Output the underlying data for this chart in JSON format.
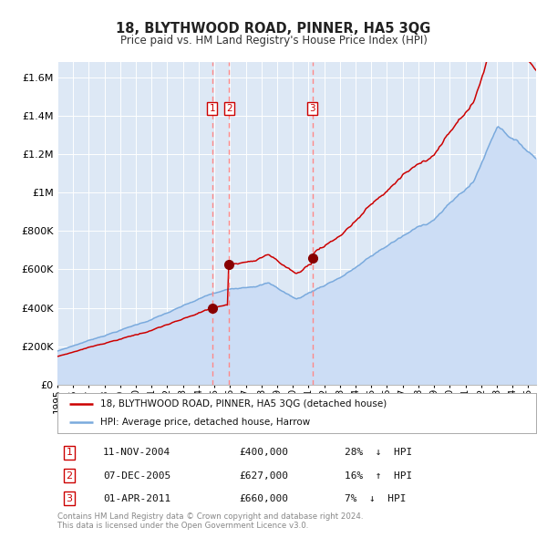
{
  "title": "18, BLYTHWOOD ROAD, PINNER, HA5 3QG",
  "subtitle": "Price paid vs. HM Land Registry's House Price Index (HPI)",
  "legend_red": "18, BLYTHWOOD ROAD, PINNER, HA5 3QG (detached house)",
  "legend_blue": "HPI: Average price, detached house, Harrow",
  "footer": "Contains HM Land Registry data © Crown copyright and database right 2024.\nThis data is licensed under the Open Government Licence v3.0.",
  "transactions": [
    {
      "num": 1,
      "date": "11-NOV-2004",
      "date_dec": 2004.87,
      "price": 400000,
      "pct": "28%",
      "dir": "↓"
    },
    {
      "num": 2,
      "date": "07-DEC-2005",
      "date_dec": 2005.93,
      "price": 627000,
      "pct": "16%",
      "dir": "↑"
    },
    {
      "num": 3,
      "date": "01-APR-2011",
      "date_dec": 2011.25,
      "price": 660000,
      "pct": "7%",
      "dir": "↓"
    }
  ],
  "ylim": [
    0,
    1680000
  ],
  "yticks": [
    0,
    200000,
    400000,
    600000,
    800000,
    1000000,
    1200000,
    1400000,
    1600000
  ],
  "ytick_labels": [
    "£0",
    "£200K",
    "£400K",
    "£600K",
    "£800K",
    "£1M",
    "£1.2M",
    "£1.4M",
    "£1.6M"
  ],
  "xlim_start": 1995.0,
  "xlim_end": 2025.5,
  "red_color": "#cc0000",
  "blue_color": "#7aaadd",
  "blue_fill": "#ccddf5",
  "bg_color": "#dde8f5",
  "grid_color": "#ffffff",
  "vline_color": "#ff8888",
  "marker_color": "#880000",
  "box_color": "#cc0000",
  "note_color": "#888888"
}
